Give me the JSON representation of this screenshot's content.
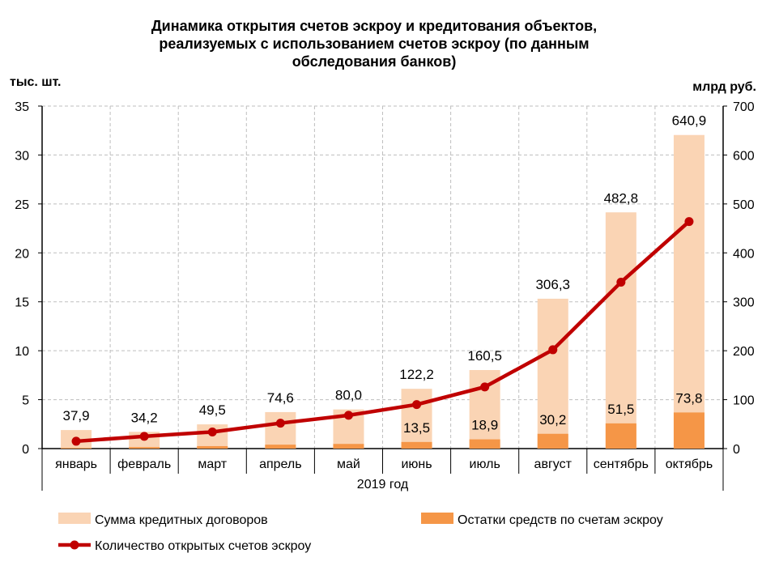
{
  "chart_data": {
    "type": "bar+line",
    "title": "Динамика открытия счетов эскроу и кредитования объектов, реализуемых с использованием счетов эскроу (по данным обследования банков)",
    "title_lines": [
      "Динамика открытия счетов эскроу и кредитования объектов,",
      "реализуемых с использованием счетов эскроу (по данным",
      "обследования банков)"
    ],
    "ylabel_left": "тыс. шт.",
    "ylabel_right": "млрд руб.",
    "xlabel": "2019 год",
    "ylim_left": [
      0,
      35
    ],
    "yticks_left": [
      0,
      5,
      10,
      15,
      20,
      25,
      30,
      35
    ],
    "ylim_right": [
      0,
      700
    ],
    "yticks_right": [
      0,
      100,
      200,
      300,
      400,
      500,
      600,
      700
    ],
    "grid": true,
    "legend_position": "bottom",
    "categories": [
      "январь",
      "февраль",
      "март",
      "апрель",
      "май",
      "июнь",
      "июль",
      "август",
      "сентябрь",
      "октябрь"
    ],
    "series": [
      {
        "name": "Сумма кредитных договоров",
        "type": "bar",
        "axis": "right",
        "color": "#FAD4B4",
        "values": [
          37.9,
          34.2,
          49.5,
          74.6,
          80.0,
          122.2,
          160.5,
          306.3,
          482.8,
          640.9
        ],
        "labels": [
          "37,9",
          "34,2",
          "49,5",
          "74,6",
          "80,0",
          "122,2",
          "160,5",
          "306,3",
          "482,8",
          "640,9"
        ]
      },
      {
        "name": "Остатки средств по счетам эскроу",
        "type": "bar",
        "axis": "right",
        "color": "#F59647",
        "values": [
          1.5,
          3,
          5,
          8,
          9.5,
          13.5,
          18.9,
          30.2,
          51.5,
          73.8
        ],
        "labels": [
          null,
          null,
          null,
          null,
          null,
          "13,5",
          "18,9",
          "30,2",
          "51,5",
          "73,8"
        ]
      },
      {
        "name": "Количество открытых счетов эскроу",
        "type": "line",
        "axis": "left",
        "color": "#C00000",
        "values": [
          0.75,
          1.25,
          1.7,
          2.6,
          3.4,
          4.5,
          6.3,
          10.1,
          17.0,
          23.2
        ]
      }
    ]
  }
}
